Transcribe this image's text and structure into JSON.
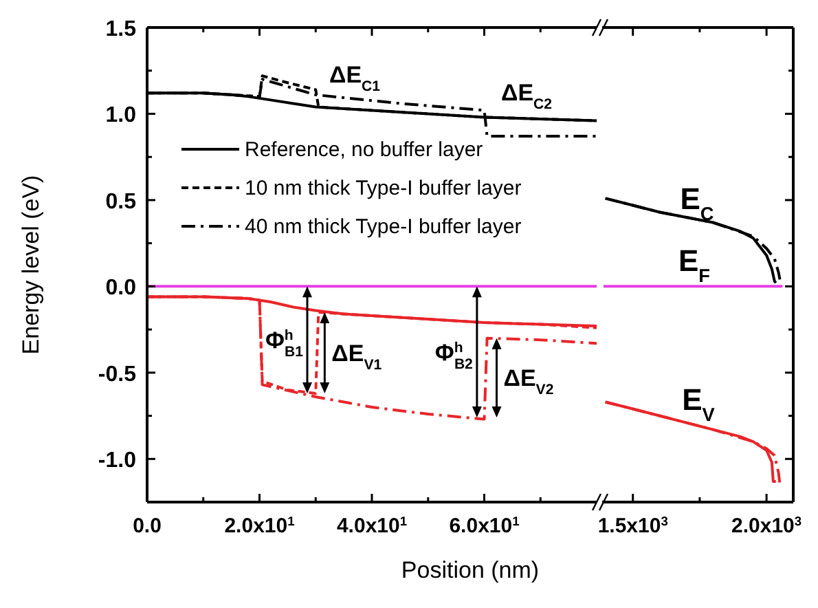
{
  "chart_data": [
    {
      "type": "line",
      "ylabel": "Energy level (eV)",
      "xlabel": "Position (nm)",
      "xlim": [
        0,
        80
      ],
      "ylim": [
        -1.25,
        1.5
      ],
      "xticks": [
        {
          "value": 0,
          "label": "0.0"
        },
        {
          "value": 10,
          "label": null
        },
        {
          "value": 20,
          "label": "2.0x10$^{1}$"
        },
        {
          "value": 30,
          "label": null
        },
        {
          "value": 40,
          "label": "4.0x10$^{1}$"
        },
        {
          "value": 50,
          "label": null
        },
        {
          "value": 60,
          "label": "6.0x10$^{1}$"
        },
        {
          "value": 70,
          "label": null
        }
      ],
      "yticks": [
        {
          "value": -1.25,
          "label": null
        },
        {
          "value": -1,
          "label": "-1.0"
        },
        {
          "value": -0.75,
          "label": null
        },
        -0.5,
        {
          "value": -0.25,
          "label": null
        },
        {
          "value": 0,
          "label": "0.0"
        },
        {
          "value": 0.25,
          "label": null
        },
        0.5,
        {
          "value": 0.75,
          "label": null
        },
        {
          "value": 1,
          "label": "1.0"
        },
        {
          "value": 1.25,
          "label": null
        },
        1.5
      ],
      "legend": "center left",
      "marker": "none",
      "series": [
        {
          "name": "Reference, no buffer layer",
          "color": "#000000",
          "line_style": "solid",
          "x": [
            0,
            5,
            10,
            15,
            18,
            22,
            26,
            30,
            35,
            40,
            50,
            60,
            70,
            80
          ],
          "values": [
            1.12,
            1.12,
            1.12,
            1.11,
            1.1,
            1.08,
            1.06,
            1.04,
            1.03,
            1.02,
            1.0,
            0.98,
            0.97,
            0.96
          ]
        },
        {
          "name": "10 nm thick Type-I buffer layer",
          "color": "#000000",
          "line_style": "dashed",
          "x": [
            0,
            10,
            15,
            20,
            20.5,
            25,
            30,
            30.5,
            35,
            40,
            50,
            60,
            70,
            80
          ],
          "values": [
            1.12,
            1.12,
            1.11,
            1.1,
            1.22,
            1.18,
            1.14,
            1.04,
            1.03,
            1.02,
            1.0,
            0.98,
            0.97,
            0.96
          ]
        },
        {
          "name": "40 nm thick Type-I buffer layer",
          "color": "#000000",
          "line_style": "dashdot",
          "x": [
            0,
            10,
            15,
            20,
            20.5,
            30,
            45,
            60,
            60.5,
            70,
            80
          ],
          "values": [
            1.12,
            1.12,
            1.11,
            1.1,
            1.2,
            1.11,
            1.06,
            1.02,
            0.87,
            0.87,
            0.87
          ]
        },
        {
          "color": "#e53fe5",
          "line_style": "solid",
          "x": [
            0,
            80
          ],
          "values": [
            0,
            0
          ]
        },
        {
          "color": "#e8262a",
          "line_style": "solid",
          "x": [
            0,
            10,
            18,
            22,
            26,
            30,
            35,
            40,
            50,
            60,
            70,
            80
          ],
          "values": [
            -0.06,
            -0.06,
            -0.07,
            -0.09,
            -0.12,
            -0.14,
            -0.16,
            -0.17,
            -0.19,
            -0.21,
            -0.22,
            -0.23
          ]
        },
        {
          "color": "#e8262a",
          "line_style": "dashed",
          "x": [
            0,
            10,
            18,
            20,
            20.5,
            25,
            30,
            30.5,
            35,
            40,
            50,
            60,
            70,
            80
          ],
          "values": [
            -0.06,
            -0.06,
            -0.07,
            -0.08,
            -0.55,
            -0.6,
            -0.62,
            -0.15,
            -0.16,
            -0.17,
            -0.19,
            -0.21,
            -0.22,
            -0.24
          ]
        },
        {
          "color": "#e8262a",
          "line_style": "dashdot",
          "x": [
            0,
            10,
            18,
            20,
            20.5,
            30,
            40,
            50,
            60,
            60.5,
            70,
            80
          ],
          "values": [
            -0.06,
            -0.06,
            -0.07,
            -0.08,
            -0.57,
            -0.64,
            -0.7,
            -0.74,
            -0.77,
            -0.3,
            -0.31,
            -0.33
          ]
        }
      ],
      "annotations": [
        "ΔE$_{C1}$",
        "ΔE$_{C2}$",
        {
          "text": "Φ$^{h}$$_{B1}$",
          "x": 28.5,
          "y": -0.62
        },
        {
          "text": "ΔE$_{V1}$",
          "x": 31.6,
          "y": -0.15
        },
        {
          "text": "Φ$^{h}$$_{B2}$",
          "x": 58.7,
          "y": -0.76
        },
        {
          "text": "ΔE$_{V2}$",
          "x": 62.2,
          "y": -0.3
        }
      ]
    },
    {
      "type": "line",
      "xlim": [
        1385,
        2100
      ],
      "ylim": [
        -1.25,
        1.5
      ],
      "tick_labels": "x",
      "xticks": [
        {
          "value": 1500,
          "label": "1.5x10$^{3}$"
        },
        {
          "value": 1750,
          "label": null
        },
        {
          "value": 2000,
          "label": "2.0x10$^{3}$"
        }
      ],
      "yticks": [
        {
          "value": -1.25,
          "label": null
        },
        -1.0,
        {
          "value": -0.75,
          "label": null
        },
        -0.5,
        {
          "value": -0.25,
          "label": null
        },
        0.0,
        {
          "value": 0.25,
          "label": null
        },
        0.5,
        {
          "value": 0.75,
          "label": null
        },
        1.0,
        {
          "value": 1.25,
          "label": null
        },
        1.5
      ],
      "marker": "none",
      "series": [
        {
          "color": "#000000",
          "line_style": "solid",
          "x": [
            1397,
            1500,
            1600,
            1700,
            1800,
            1900,
            1950,
            2000,
            2020,
            2030,
            2035
          ],
          "values": [
            0.51,
            0.47,
            0.43,
            0.4,
            0.37,
            0.32,
            0.28,
            0.18,
            0.1,
            0.03,
            0.02
          ]
        },
        {
          "color": "#000000",
          "line_style": "dashdot",
          "x": [
            1397,
            1600,
            1800,
            1950,
            2000,
            2030,
            2045,
            2050
          ],
          "values": [
            0.51,
            0.43,
            0.37,
            0.29,
            0.22,
            0.16,
            0.08,
            0.04
          ]
        },
        {
          "color": "#e53fe5",
          "line_style": "solid",
          "x": [
            1390,
            2060
          ],
          "values": [
            0,
            0
          ]
        },
        {
          "color": "#e8262a",
          "line_style": "solid",
          "x": [
            1397,
            1500,
            1600,
            1700,
            1800,
            1900,
            1950,
            2000,
            2020,
            2025,
            2035
          ],
          "values": [
            -0.67,
            -0.71,
            -0.75,
            -0.79,
            -0.83,
            -0.87,
            -0.9,
            -0.95,
            -1.02,
            -1.13,
            -1.13
          ]
        },
        {
          "color": "#e8262a",
          "line_style": "dashdot",
          "x": [
            1397,
            1600,
            1800,
            1950,
            2000,
            2030,
            2045,
            2050
          ],
          "values": [
            -0.67,
            -0.75,
            -0.83,
            -0.9,
            -0.94,
            -0.98,
            -1.08,
            -1.15
          ]
        }
      ],
      "annotations": [
        "E$_{C}$",
        "E$_{F}$",
        "E$_{V}$"
      ]
    }
  ]
}
